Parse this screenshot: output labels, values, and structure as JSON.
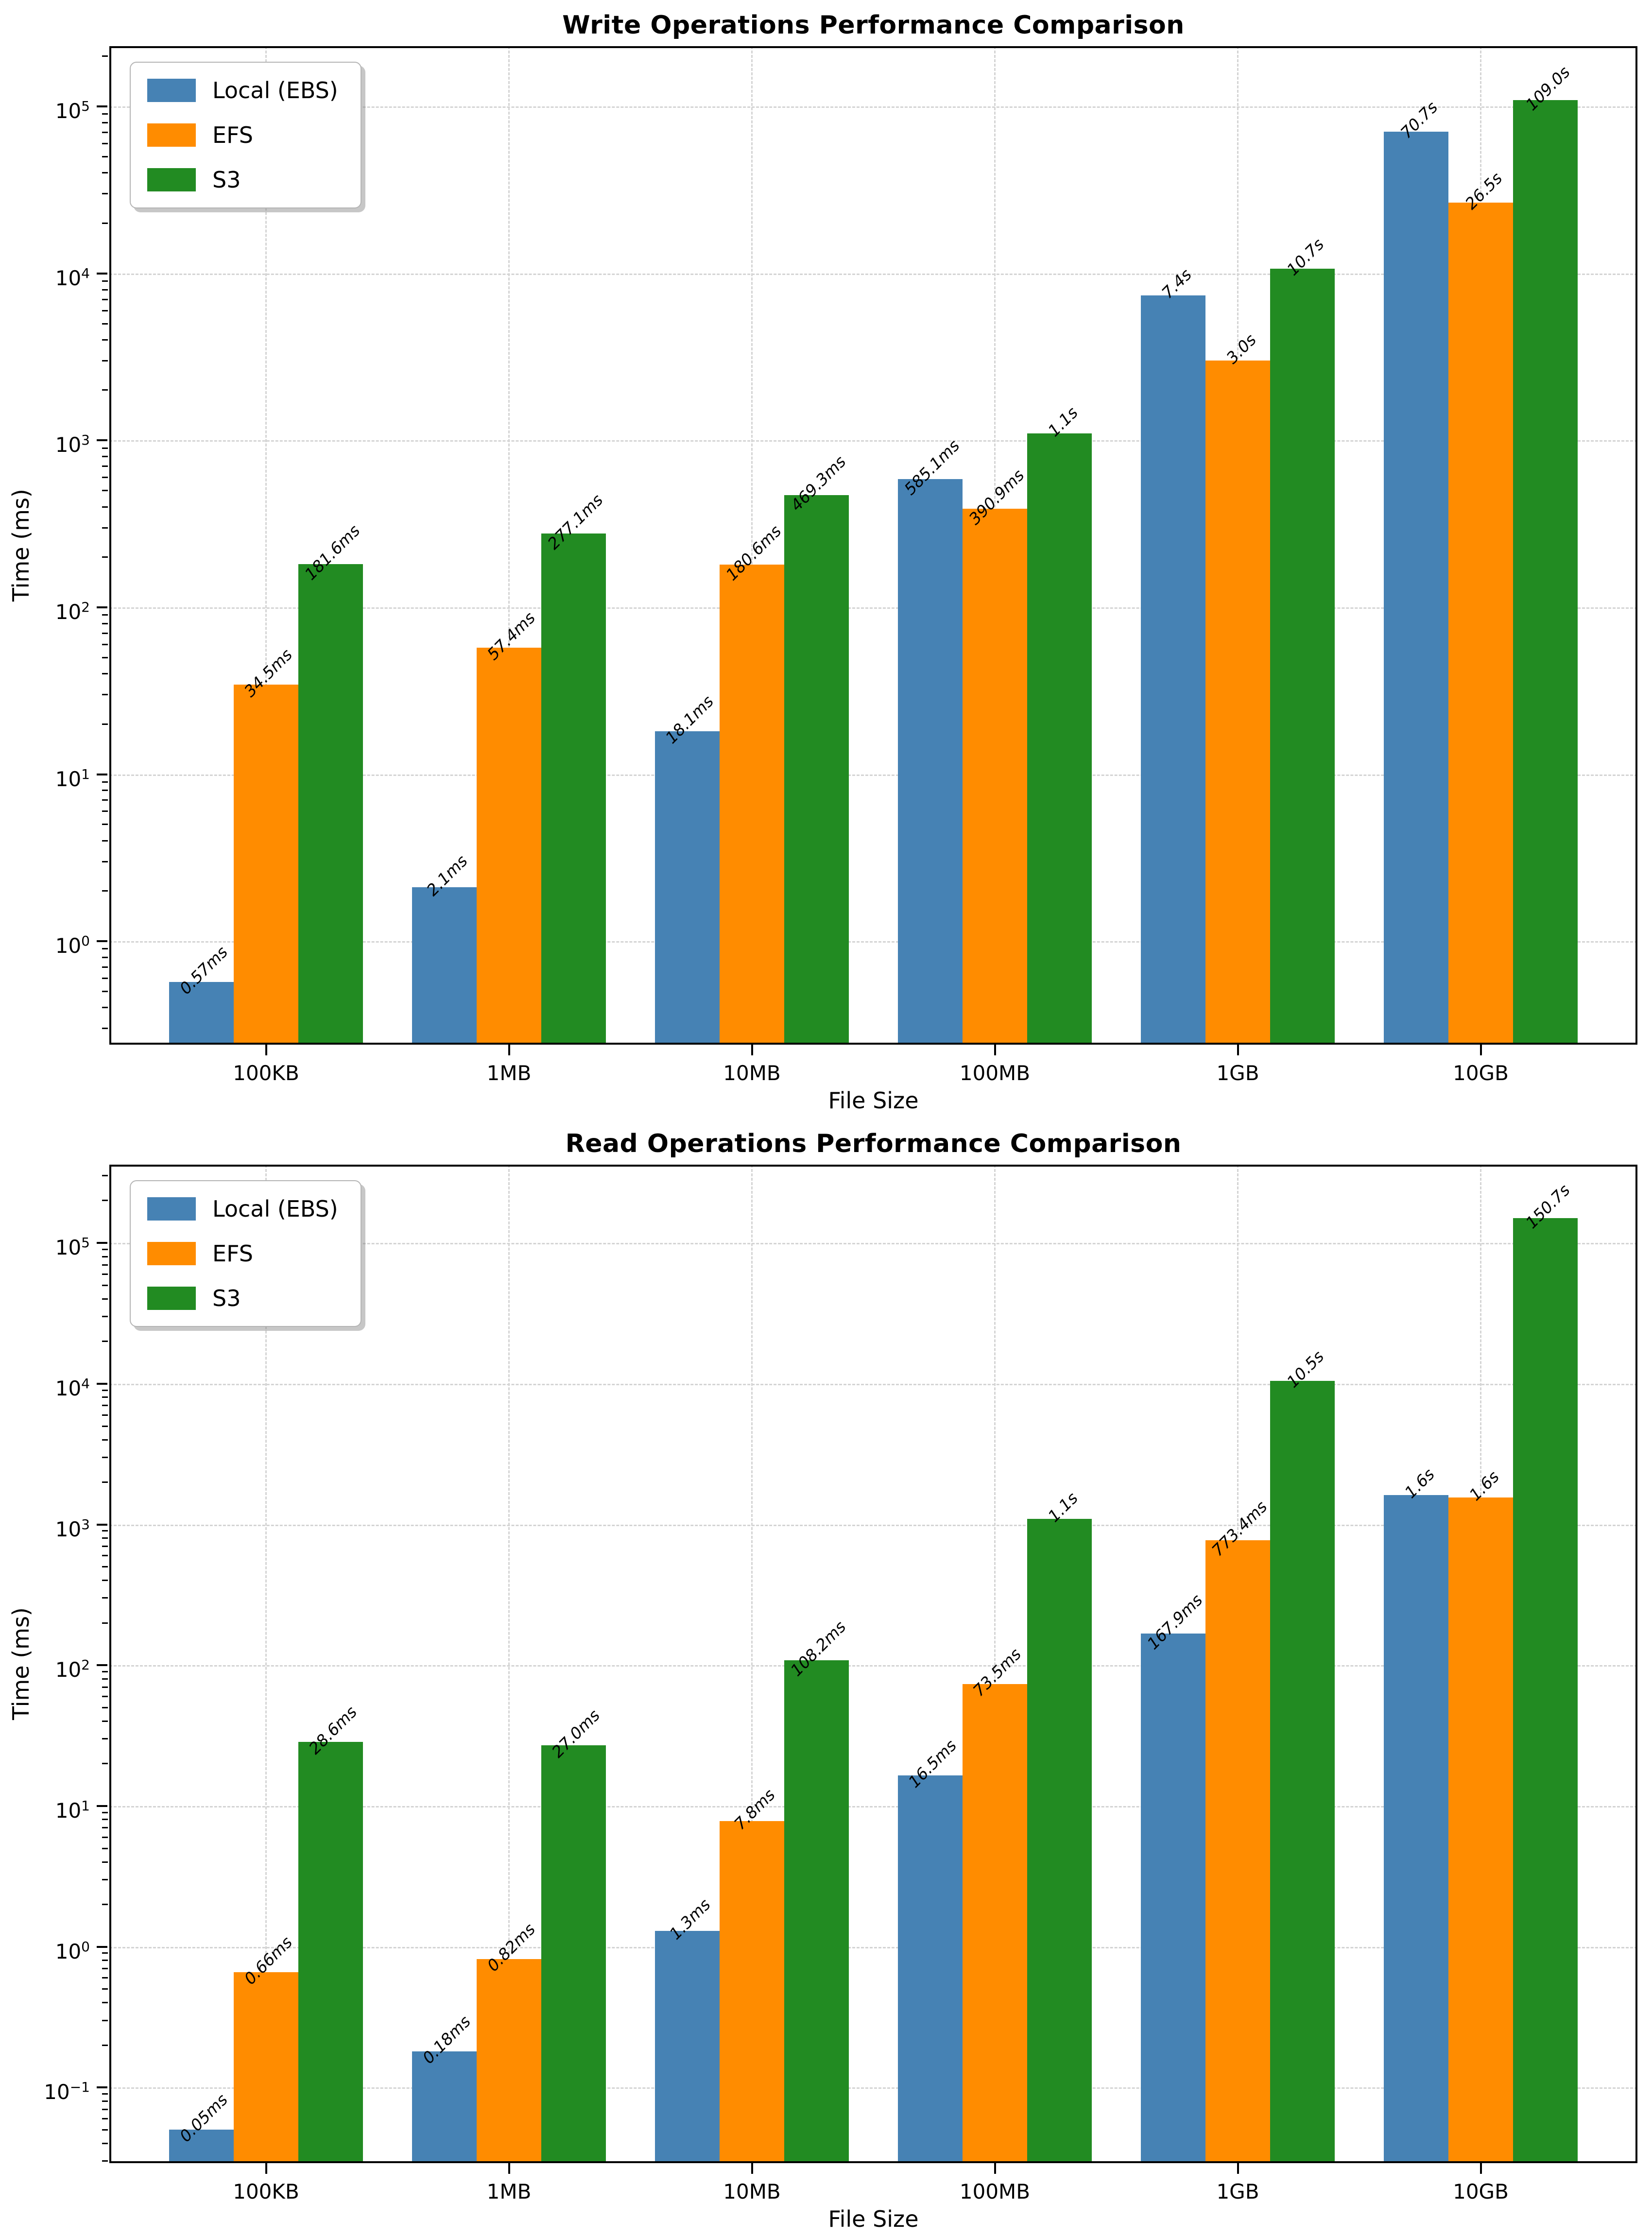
{
  "colors": {
    "local": "#4682B4",
    "efs": "#FF8C00",
    "s3": "#228B22",
    "grid": "#d4d4d4",
    "spine": "#000000",
    "background": "#ffffff"
  },
  "legend": {
    "items": [
      {
        "name": "Local (EBS)",
        "color_key": "local"
      },
      {
        "name": "EFS",
        "color_key": "efs"
      },
      {
        "name": "S3",
        "color_key": "s3"
      }
    ]
  },
  "chart_data": [
    {
      "type": "bar",
      "title": "Write Operations Performance Comparison",
      "xlabel": "File Size",
      "ylabel": "Time (ms)",
      "yscale": "log",
      "ylim": [
        0.24,
        230000
      ],
      "grid": "dashed",
      "legend_position": "upper-left",
      "categories": [
        "100KB",
        "1MB",
        "10MB",
        "100MB",
        "1GB",
        "10GB"
      ],
      "ytick_exps": [
        "0",
        "1",
        "2",
        "3",
        "4",
        "5"
      ],
      "series": [
        {
          "name": "Local (EBS)",
          "color_key": "local",
          "values_ms": [
            0.57,
            2.1,
            18.1,
            585.1,
            7400,
            70700
          ],
          "labels": [
            "0.57ms",
            "2.1ms",
            "18.1ms",
            "585.1ms",
            "7.4s",
            "70.7s"
          ]
        },
        {
          "name": "EFS",
          "color_key": "efs",
          "values_ms": [
            34.5,
            57.4,
            180.6,
            390.9,
            3000,
            26500
          ],
          "labels": [
            "34.5ms",
            "57.4ms",
            "180.6ms",
            "390.9ms",
            "3.0s",
            "26.5s"
          ]
        },
        {
          "name": "S3",
          "color_key": "s3",
          "values_ms": [
            181.6,
            277.1,
            469.3,
            1100,
            10700,
            109000
          ],
          "labels": [
            "181.6ms",
            "277.1ms",
            "469.3ms",
            "1.1s",
            "10.7s",
            "109.0s"
          ]
        }
      ]
    },
    {
      "type": "bar",
      "title": "Read Operations Performance Comparison",
      "xlabel": "File Size",
      "ylabel": "Time (ms)",
      "yscale": "log",
      "ylim": [
        0.029,
        360000
      ],
      "grid": "dashed",
      "legend_position": "upper-left",
      "categories": [
        "100KB",
        "1MB",
        "10MB",
        "100MB",
        "1GB",
        "10GB"
      ],
      "ytick_exps": [
        "−1",
        "0",
        "1",
        "2",
        "3",
        "4",
        "5"
      ],
      "series": [
        {
          "name": "Local (EBS)",
          "color_key": "local",
          "values_ms": [
            0.05,
            0.18,
            1.3,
            16.5,
            167.9,
            1620
          ],
          "labels": [
            "0.05ms",
            "0.18ms",
            "1.3ms",
            "16.5ms",
            "167.9ms",
            "1.6s"
          ]
        },
        {
          "name": "EFS",
          "color_key": "efs",
          "values_ms": [
            0.66,
            0.82,
            7.8,
            73.5,
            773.4,
            1560
          ],
          "labels": [
            "0.66ms",
            "0.82ms",
            "7.8ms",
            "73.5ms",
            "773.4ms",
            "1.6s"
          ]
        },
        {
          "name": "S3",
          "color_key": "s3",
          "values_ms": [
            28.6,
            27.0,
            108.2,
            1100,
            10500,
            150700
          ],
          "labels": [
            "28.6ms",
            "27.0ms",
            "108.2ms",
            "1.1s",
            "10.5s",
            "150.7s"
          ]
        }
      ]
    }
  ]
}
